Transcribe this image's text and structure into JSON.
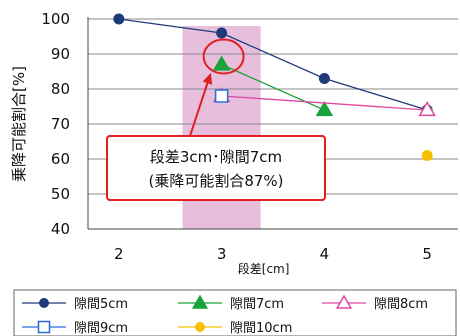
{
  "chart_data": {
    "type": "line",
    "ylabel": "乗降可能割合[%]",
    "xlabel": "段差[cm]",
    "ylim": [
      40,
      100
    ],
    "yticks": [
      40,
      50,
      60,
      70,
      80,
      90,
      100
    ],
    "xticks": [
      2,
      3,
      4,
      5
    ],
    "xlim": [
      1.7,
      5.3
    ],
    "grid": "horizontal",
    "highlight_band": {
      "x": 3
    },
    "series": [
      {
        "name": "隙間5cm",
        "color": "#1f3a7a",
        "marker": "circle-filled",
        "x": [
          2,
          3,
          4,
          5
        ],
        "y": [
          100,
          96,
          83,
          74
        ]
      },
      {
        "name": "隙間7cm",
        "color": "#1aa33a",
        "marker": "triangle-filled",
        "x": [
          3,
          4
        ],
        "y": [
          87,
          74
        ]
      },
      {
        "name": "隙間8cm",
        "color": "#e0479e",
        "marker": "triangle-open",
        "x": [
          3,
          5
        ],
        "y": [
          78,
          74
        ]
      },
      {
        "name": "隙間9cm",
        "color": "#2a6fd8",
        "marker": "square-open",
        "x": [
          3
        ],
        "y": [
          78
        ]
      },
      {
        "name": "隙間10cm",
        "color": "#f5c000",
        "marker": "circle-filled",
        "x": [
          5
        ],
        "y": [
          61
        ]
      }
    ],
    "annotation": {
      "line1": "段差3cm･隙間7cm",
      "line2": "(乗降可能割合87%)",
      "target": {
        "x": 3,
        "y": 87
      },
      "color": "#e02020"
    }
  }
}
